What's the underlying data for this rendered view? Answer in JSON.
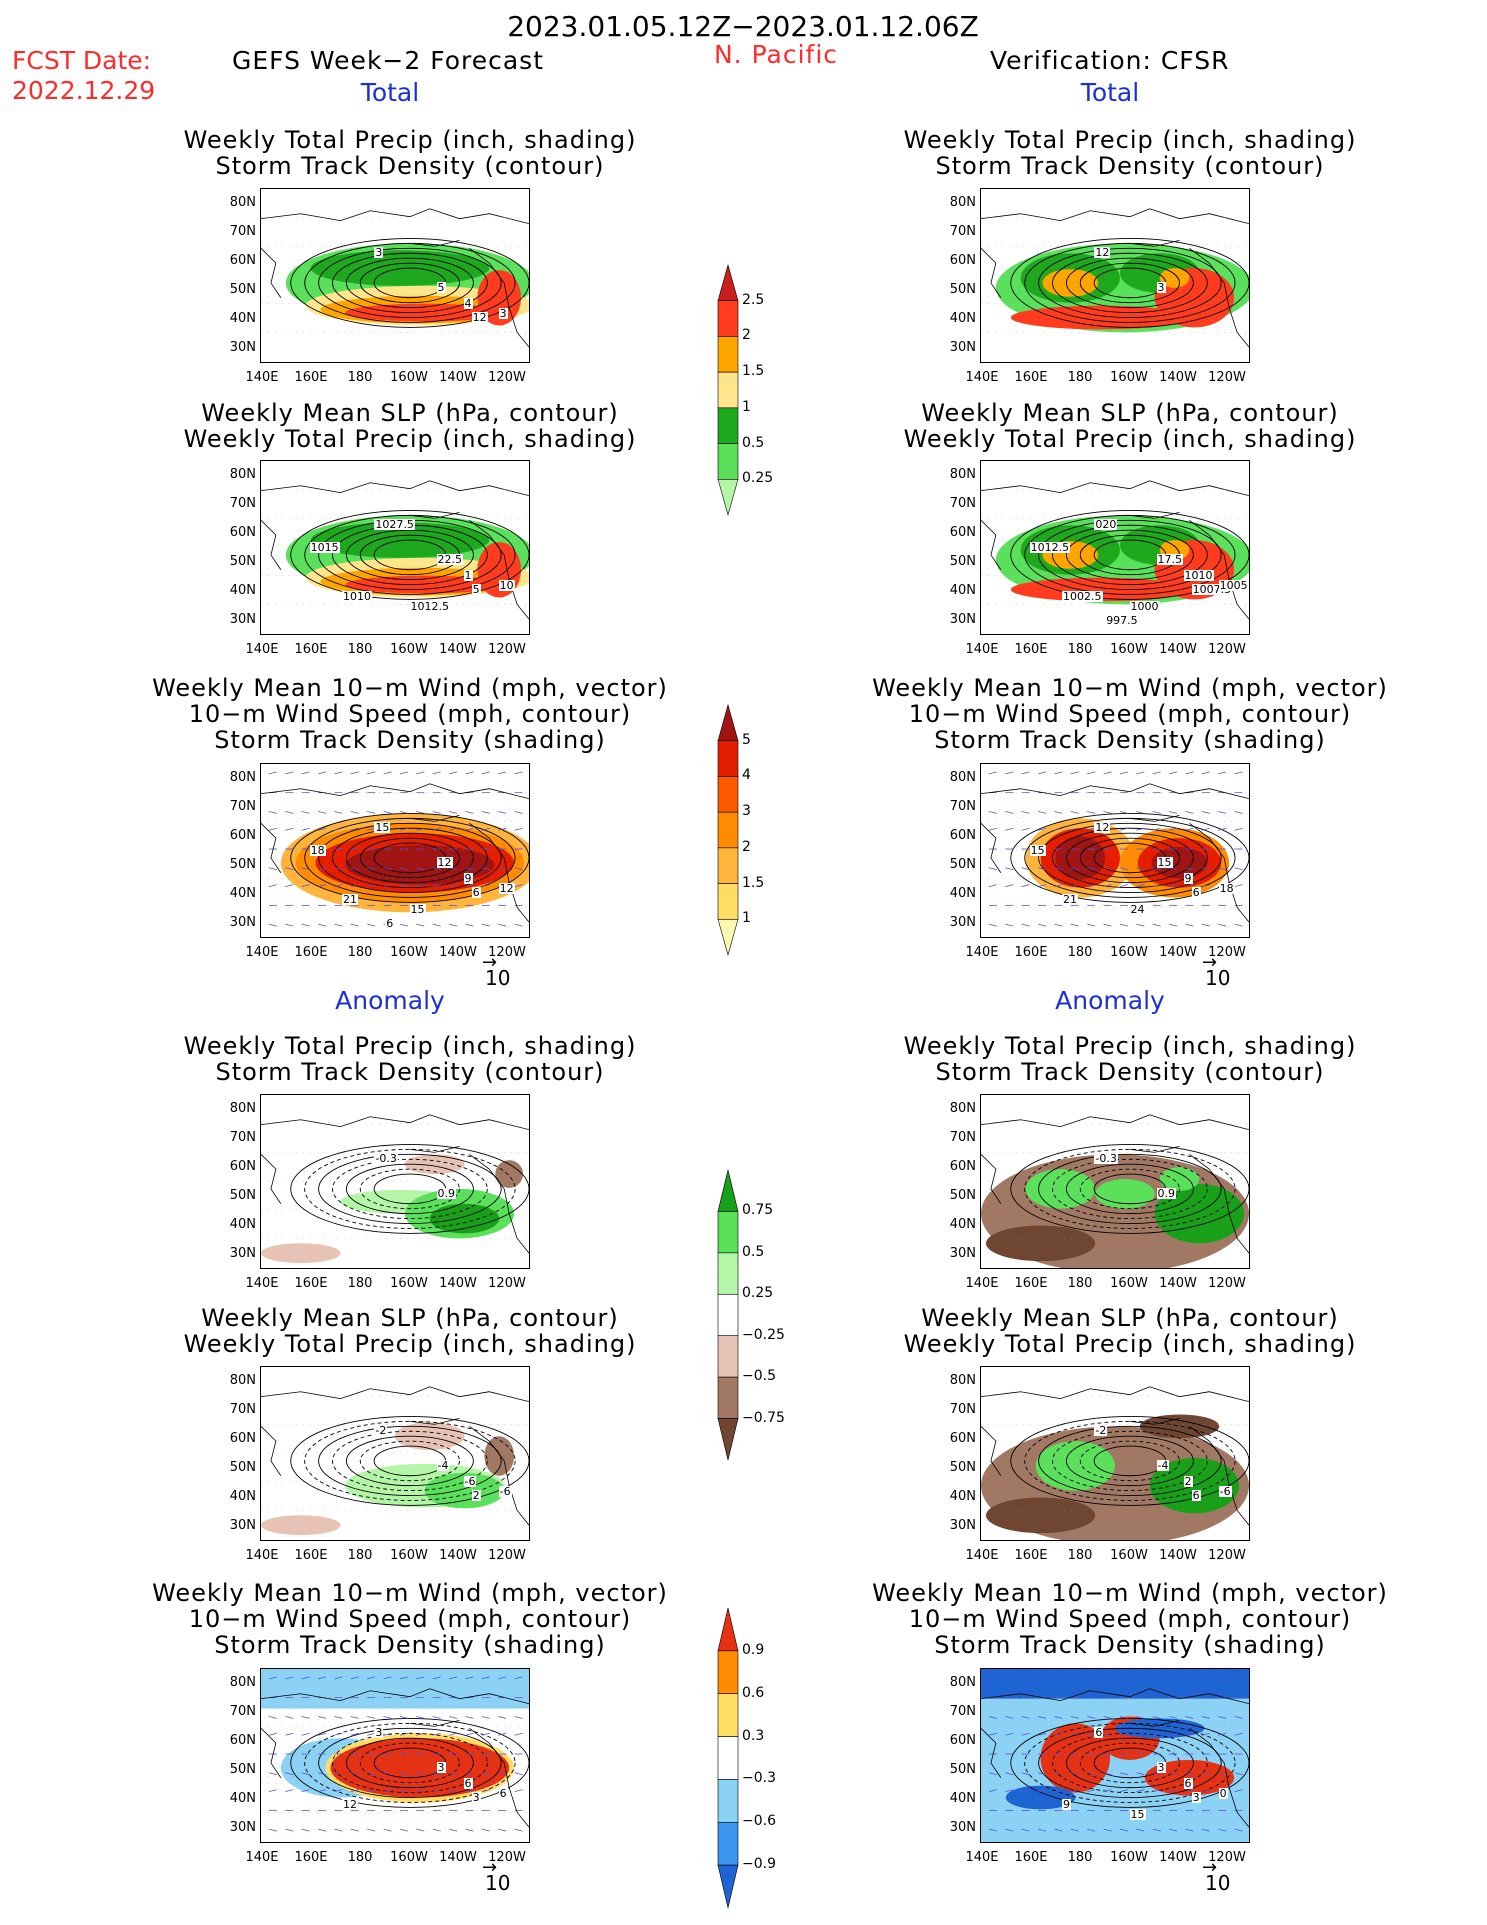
{
  "header": {
    "date_range": "2023.01.05.12Z−2023.01.12.06Z",
    "fcst_label": "FCST Date:",
    "fcst_date": "2022.12.29",
    "left_title": "GEFS Week−2 Forecast",
    "region": "N. Pacific",
    "right_title": "Verification: CFSR"
  },
  "sections": {
    "total": "Total",
    "anomaly": "Anomaly"
  },
  "titles": {
    "precip_track": [
      "Weekly Total Precip (inch, shading)",
      "Storm Track Density (contour)"
    ],
    "slp_precip": [
      "Weekly Mean SLP (hPa, contour)",
      "Weekly Total Precip (inch, shading)"
    ],
    "wind_track": [
      "Weekly Mean 10−m Wind (mph, vector)",
      "10−m Wind Speed (mph, contour)",
      "Storm Track Density (shading)"
    ]
  },
  "axes": {
    "lat_labels": [
      "80N",
      "70N",
      "60N",
      "50N",
      "40N",
      "30N"
    ],
    "lon_labels": [
      "140E",
      "160E",
      "180",
      "160W",
      "140W",
      "120W"
    ]
  },
  "vector_ref": "10",
  "colors": {
    "land_outline": "#000000",
    "title_red": "#ff2a2a",
    "title_blue": "#1c2fd6"
  },
  "contour_labels": {
    "fcst_total_precip": [
      "3",
      "5",
      "4",
      "12",
      "3"
    ],
    "cfsr_total_precip": [
      "12",
      "3"
    ],
    "fcst_total_slp": [
      "1027.5",
      "22.5",
      "1",
      "5",
      "10",
      "1010",
      "1012.5",
      "1015"
    ],
    "cfsr_total_slp": [
      "020",
      "17.5",
      "1010",
      "1007.5",
      "1005",
      "1002.5",
      "1000",
      "1012.5",
      "997.5"
    ],
    "fcst_total_wind": [
      "15",
      "12",
      "9",
      "6",
      "12",
      "21",
      "15",
      "18",
      "6"
    ],
    "cfsr_total_wind": [
      "12",
      "15",
      "9",
      "6",
      "18",
      "21",
      "24",
      "15"
    ],
    "fcst_anom_precip": [
      "-0.3",
      "0.9"
    ],
    "cfsr_anom_precip": [
      "-0.3",
      "0.9"
    ],
    "fcst_anom_slp": [
      "-2",
      "-4",
      "-6",
      "2",
      "-6"
    ],
    "cfsr_anom_slp": [
      "-2",
      "-4",
      "2",
      "6",
      "-6"
    ],
    "fcst_anom_wind": [
      "3",
      "3",
      "6",
      "3",
      "6",
      "12"
    ],
    "cfsr_anom_wind": [
      "6",
      "3",
      "6",
      "3",
      "0",
      "9",
      "15"
    ]
  },
  "chart_data": [
    {
      "type": "heatmap",
      "name": "precip_total_colorbar",
      "levels": [
        0.25,
        0.5,
        1,
        1.5,
        2,
        2.5
      ],
      "labels": [
        "0.25",
        "0.5",
        "1",
        "1.5",
        "2",
        "2.5"
      ],
      "colors": [
        "#b4f5a8",
        "#5ae05a",
        "#1ea81e",
        "#ffe68c",
        "#ffa500",
        "#ff3c1e",
        "#c81e1e"
      ]
    },
    {
      "type": "heatmap",
      "name": "track_total_colorbar",
      "levels": [
        1,
        1.5,
        2,
        3,
        4,
        5
      ],
      "labels": [
        "1",
        "1.5",
        "2",
        "3",
        "4",
        "5"
      ],
      "colors": [
        "#fff8b0",
        "#ffdc64",
        "#ffb43c",
        "#ff8c00",
        "#ff5a00",
        "#e61e00",
        "#a01414"
      ]
    },
    {
      "type": "heatmap",
      "name": "precip_anomaly_colorbar",
      "levels": [
        -0.75,
        -0.5,
        -0.25,
        0.25,
        0.5,
        0.75
      ],
      "labels": [
        "−0.75",
        "−0.5",
        "−0.25",
        "0.25",
        "0.5",
        "0.75"
      ],
      "colors": [
        "#6e4632",
        "#a07864",
        "#e6c3b4",
        "#ffffff",
        "#b4f5a8",
        "#5ae05a",
        "#18a018"
      ]
    },
    {
      "type": "heatmap",
      "name": "track_anomaly_colorbar",
      "levels": [
        -0.9,
        -0.6,
        -0.3,
        0.3,
        0.6,
        0.9
      ],
      "labels": [
        "−0.9",
        "−0.6",
        "−0.3",
        "0.3",
        "0.6",
        "0.9"
      ],
      "colors": [
        "#1e64d2",
        "#3c96f0",
        "#8cd2f5",
        "#ffffff",
        "#ffdc64",
        "#ff8c00",
        "#e63214"
      ]
    }
  ]
}
